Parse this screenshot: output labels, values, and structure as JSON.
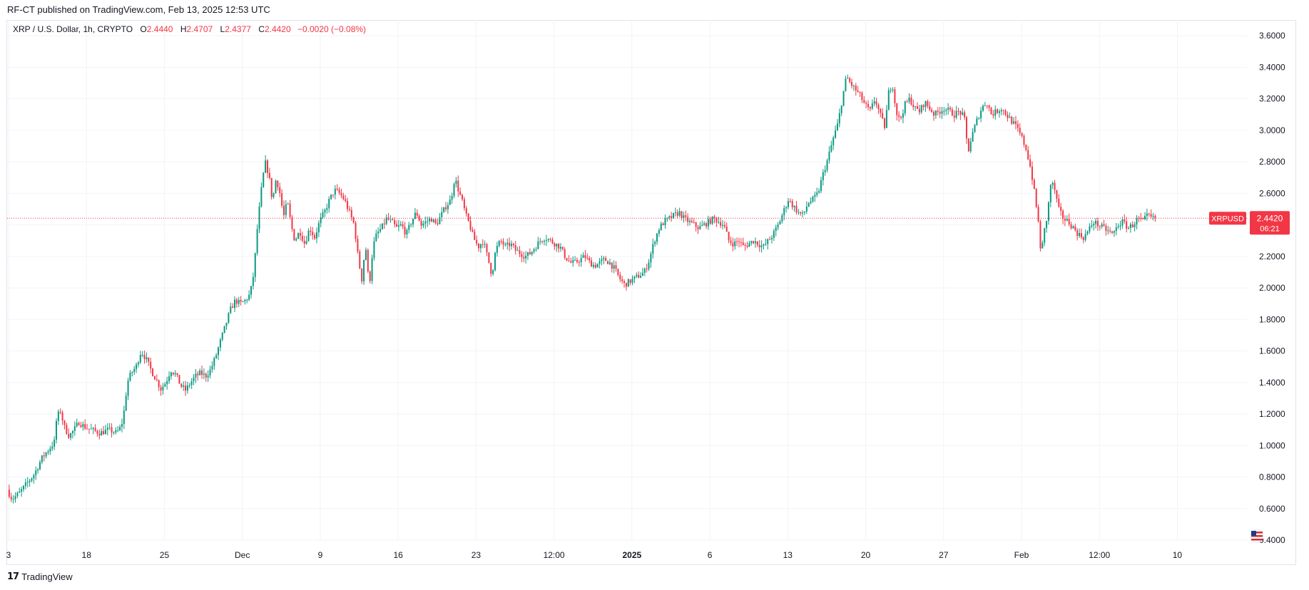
{
  "header": {
    "published": "RF-CT published on TradingView.com, Feb 13, 2025 12:53 UTC"
  },
  "legend": {
    "symbol": "XRP / U.S. Dollar, 1h, CRYPTO",
    "o_label": "O",
    "o_value": "2.4440",
    "h_label": "H",
    "h_value": "2.4707",
    "l_label": "L",
    "l_value": "2.4377",
    "c_label": "C",
    "c_value": "2.4420",
    "change": "−0.0020 (−0.08%)"
  },
  "price_tag": {
    "symbol": "XRPUSD",
    "price": "2.4420",
    "countdown": "06:21"
  },
  "footer": {
    "brand": "TradingView",
    "brand_icon": "tradingview-logo-icon"
  },
  "colors": {
    "up": "#089981",
    "down": "#f23645",
    "grid": "#f0f3fa",
    "price_line": "#f23645"
  },
  "chart_data": {
    "type": "candlestick",
    "interval": "1h",
    "ylim": [
      0.4,
      3.7
    ],
    "y_ticks": [
      "3.6000",
      "3.4000",
      "3.2000",
      "3.0000",
      "2.8000",
      "2.6000",
      "2.4000",
      "2.2000",
      "2.0000",
      "1.8000",
      "1.6000",
      "1.4000",
      "1.2000",
      "1.0000",
      "0.8000",
      "0.6000",
      "0.4000"
    ],
    "x_ticks": [
      "3",
      "18",
      "25",
      "Dec",
      "9",
      "16",
      "23",
      "12:00",
      "2025",
      "6",
      "13",
      "20",
      "27",
      "Feb",
      "12:00",
      "10"
    ],
    "bold_ticks": [
      "2025"
    ],
    "last_price": 2.442,
    "grid": true,
    "price_path": [
      [
        0,
        0.72
      ],
      [
        0.004,
        0.66
      ],
      [
        0.01,
        0.7
      ],
      [
        0.016,
        0.76
      ],
      [
        0.022,
        0.82
      ],
      [
        0.028,
        0.92
      ],
      [
        0.034,
        0.98
      ],
      [
        0.038,
        1.02
      ],
      [
        0.04,
        1.18
      ],
      [
        0.043,
        1.22
      ],
      [
        0.046,
        1.12
      ],
      [
        0.05,
        1.06
      ],
      [
        0.054,
        1.1
      ],
      [
        0.058,
        1.15
      ],
      [
        0.062,
        1.12
      ],
      [
        0.068,
        1.1
      ],
      [
        0.075,
        1.08
      ],
      [
        0.082,
        1.1
      ],
      [
        0.088,
        1.08
      ],
      [
        0.092,
        1.12
      ],
      [
        0.094,
        1.2
      ],
      [
        0.097,
        1.4
      ],
      [
        0.1,
        1.46
      ],
      [
        0.104,
        1.5
      ],
      [
        0.108,
        1.6
      ],
      [
        0.112,
        1.55
      ],
      [
        0.116,
        1.48
      ],
      [
        0.12,
        1.42
      ],
      [
        0.124,
        1.36
      ],
      [
        0.128,
        1.4
      ],
      [
        0.132,
        1.48
      ],
      [
        0.136,
        1.45
      ],
      [
        0.14,
        1.38
      ],
      [
        0.144,
        1.35
      ],
      [
        0.148,
        1.4
      ],
      [
        0.152,
        1.44
      ],
      [
        0.156,
        1.46
      ],
      [
        0.16,
        1.44
      ],
      [
        0.164,
        1.48
      ],
      [
        0.168,
        1.56
      ],
      [
        0.172,
        1.66
      ],
      [
        0.176,
        1.76
      ],
      [
        0.18,
        1.86
      ],
      [
        0.184,
        1.92
      ],
      [
        0.188,
        1.9
      ],
      [
        0.192,
        1.92
      ],
      [
        0.196,
        1.96
      ],
      [
        0.199,
        2.1
      ],
      [
        0.202,
        2.4
      ],
      [
        0.205,
        2.62
      ],
      [
        0.208,
        2.8
      ],
      [
        0.211,
        2.72
      ],
      [
        0.214,
        2.55
      ],
      [
        0.217,
        2.7
      ],
      [
        0.22,
        2.6
      ],
      [
        0.223,
        2.45
      ],
      [
        0.226,
        2.55
      ],
      [
        0.229,
        2.4
      ],
      [
        0.232,
        2.3
      ],
      [
        0.236,
        2.36
      ],
      [
        0.24,
        2.28
      ],
      [
        0.244,
        2.38
      ],
      [
        0.248,
        2.32
      ],
      [
        0.252,
        2.42
      ],
      [
        0.256,
        2.48
      ],
      [
        0.26,
        2.56
      ],
      [
        0.264,
        2.62
      ],
      [
        0.268,
        2.6
      ],
      [
        0.272,
        2.56
      ],
      [
        0.276,
        2.48
      ],
      [
        0.28,
        2.4
      ],
      [
        0.283,
        2.2
      ],
      [
        0.286,
        2.05
      ],
      [
        0.289,
        2.28
      ],
      [
        0.292,
        2.0
      ],
      [
        0.295,
        2.26
      ],
      [
        0.298,
        2.34
      ],
      [
        0.302,
        2.38
      ],
      [
        0.306,
        2.44
      ],
      [
        0.31,
        2.42
      ],
      [
        0.314,
        2.38
      ],
      [
        0.318,
        2.4
      ],
      [
        0.322,
        2.34
      ],
      [
        0.326,
        2.42
      ],
      [
        0.33,
        2.48
      ],
      [
        0.334,
        2.4
      ],
      [
        0.338,
        2.42
      ],
      [
        0.342,
        2.44
      ],
      [
        0.346,
        2.4
      ],
      [
        0.35,
        2.46
      ],
      [
        0.354,
        2.52
      ],
      [
        0.358,
        2.56
      ],
      [
        0.361,
        2.7
      ],
      [
        0.364,
        2.62
      ],
      [
        0.367,
        2.55
      ],
      [
        0.37,
        2.46
      ],
      [
        0.373,
        2.4
      ],
      [
        0.376,
        2.32
      ],
      [
        0.38,
        2.26
      ],
      [
        0.384,
        2.3
      ],
      [
        0.388,
        2.18
      ],
      [
        0.391,
        2.08
      ],
      [
        0.394,
        2.24
      ],
      [
        0.398,
        2.3
      ],
      [
        0.402,
        2.26
      ],
      [
        0.406,
        2.28
      ],
      [
        0.41,
        2.24
      ],
      [
        0.414,
        2.22
      ],
      [
        0.418,
        2.2
      ],
      [
        0.422,
        2.22
      ],
      [
        0.426,
        2.26
      ],
      [
        0.43,
        2.3
      ],
      [
        0.434,
        2.32
      ],
      [
        0.438,
        2.3
      ],
      [
        0.442,
        2.28
      ],
      [
        0.446,
        2.26
      ],
      [
        0.45,
        2.2
      ],
      [
        0.454,
        2.16
      ],
      [
        0.458,
        2.16
      ],
      [
        0.462,
        2.18
      ],
      [
        0.466,
        2.2
      ],
      [
        0.47,
        2.16
      ],
      [
        0.474,
        2.14
      ],
      [
        0.478,
        2.16
      ],
      [
        0.482,
        2.18
      ],
      [
        0.486,
        2.16
      ],
      [
        0.49,
        2.12
      ],
      [
        0.494,
        2.06
      ],
      [
        0.498,
        2.02
      ],
      [
        0.502,
        2.04
      ],
      [
        0.506,
        2.06
      ],
      [
        0.51,
        2.08
      ],
      [
        0.514,
        2.1
      ],
      [
        0.518,
        2.18
      ],
      [
        0.522,
        2.3
      ],
      [
        0.526,
        2.38
      ],
      [
        0.53,
        2.42
      ],
      [
        0.534,
        2.44
      ],
      [
        0.538,
        2.46
      ],
      [
        0.542,
        2.48
      ],
      [
        0.546,
        2.44
      ],
      [
        0.55,
        2.42
      ],
      [
        0.554,
        2.4
      ],
      [
        0.558,
        2.38
      ],
      [
        0.562,
        2.4
      ],
      [
        0.566,
        2.42
      ],
      [
        0.57,
        2.44
      ],
      [
        0.574,
        2.42
      ],
      [
        0.578,
        2.4
      ],
      [
        0.582,
        2.3
      ],
      [
        0.586,
        2.28
      ],
      [
        0.59,
        2.3
      ],
      [
        0.594,
        2.26
      ],
      [
        0.598,
        2.28
      ],
      [
        0.602,
        2.3
      ],
      [
        0.606,
        2.28
      ],
      [
        0.61,
        2.26
      ],
      [
        0.614,
        2.3
      ],
      [
        0.618,
        2.34
      ],
      [
        0.622,
        2.4
      ],
      [
        0.626,
        2.48
      ],
      [
        0.63,
        2.56
      ],
      [
        0.634,
        2.52
      ],
      [
        0.638,
        2.48
      ],
      [
        0.642,
        2.46
      ],
      [
        0.646,
        2.54
      ],
      [
        0.65,
        2.56
      ],
      [
        0.654,
        2.6
      ],
      [
        0.658,
        2.72
      ],
      [
        0.662,
        2.82
      ],
      [
        0.666,
        2.94
      ],
      [
        0.67,
        3.04
      ],
      [
        0.674,
        3.22
      ],
      [
        0.677,
        3.34
      ],
      [
        0.68,
        3.3
      ],
      [
        0.684,
        3.26
      ],
      [
        0.688,
        3.22
      ],
      [
        0.692,
        3.16
      ],
      [
        0.696,
        3.12
      ],
      [
        0.7,
        3.2
      ],
      [
        0.704,
        3.1
      ],
      [
        0.708,
        3.02
      ],
      [
        0.711,
        3.24
      ],
      [
        0.714,
        3.3
      ],
      [
        0.717,
        3.12
      ],
      [
        0.72,
        3.06
      ],
      [
        0.724,
        3.16
      ],
      [
        0.728,
        3.2
      ],
      [
        0.732,
        3.14
      ],
      [
        0.736,
        3.12
      ],
      [
        0.74,
        3.18
      ],
      [
        0.744,
        3.14
      ],
      [
        0.748,
        3.1
      ],
      [
        0.752,
        3.12
      ],
      [
        0.756,
        3.14
      ],
      [
        0.76,
        3.12
      ],
      [
        0.764,
        3.1
      ],
      [
        0.768,
        3.12
      ],
      [
        0.772,
        3.08
      ],
      [
        0.775,
        2.86
      ],
      [
        0.778,
        2.96
      ],
      [
        0.782,
        3.06
      ],
      [
        0.786,
        3.14
      ],
      [
        0.79,
        3.18
      ],
      [
        0.794,
        3.1
      ],
      [
        0.798,
        3.12
      ],
      [
        0.802,
        3.14
      ],
      [
        0.806,
        3.1
      ],
      [
        0.81,
        3.06
      ],
      [
        0.814,
        3.02
      ],
      [
        0.818,
        2.96
      ],
      [
        0.822,
        2.88
      ],
      [
        0.826,
        2.74
      ],
      [
        0.829,
        2.58
      ],
      [
        0.832,
        2.4
      ],
      [
        0.834,
        2.2
      ],
      [
        0.836,
        2.34
      ],
      [
        0.839,
        2.46
      ],
      [
        0.842,
        2.68
      ],
      [
        0.845,
        2.62
      ],
      [
        0.848,
        2.5
      ],
      [
        0.852,
        2.44
      ],
      [
        0.856,
        2.42
      ],
      [
        0.86,
        2.38
      ],
      [
        0.864,
        2.34
      ],
      [
        0.868,
        2.32
      ],
      [
        0.872,
        2.36
      ],
      [
        0.876,
        2.42
      ],
      [
        0.88,
        2.4
      ],
      [
        0.884,
        2.38
      ],
      [
        0.888,
        2.36
      ],
      [
        0.892,
        2.34
      ],
      [
        0.896,
        2.4
      ],
      [
        0.9,
        2.42
      ],
      [
        0.904,
        2.38
      ],
      [
        0.908,
        2.4
      ],
      [
        0.912,
        2.44
      ],
      [
        0.916,
        2.42
      ],
      [
        0.92,
        2.46
      ],
      [
        0.924,
        2.44
      ],
      [
        0.926,
        2.442
      ]
    ]
  }
}
